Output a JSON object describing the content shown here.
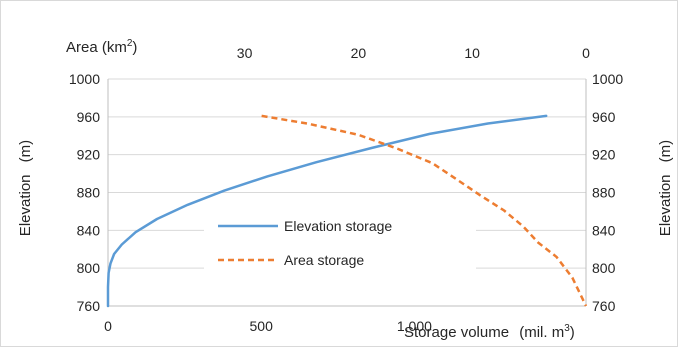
{
  "chart_data": {
    "type": "line",
    "title": "",
    "left_axis": {
      "label": "Elevation",
      "unit": "(m)",
      "ticks": [
        760,
        800,
        840,
        880,
        920,
        960,
        1000
      ],
      "range": [
        760,
        1000
      ]
    },
    "right_axis": {
      "label": "Elevation",
      "unit": "(m)",
      "ticks": [
        760,
        800,
        840,
        880,
        920,
        960,
        1000
      ],
      "range": [
        760,
        1000
      ]
    },
    "bottom_axis": {
      "label": "Storage volume",
      "unit_prefix": "(mil. m",
      "unit_sup": "3",
      "unit_suffix": ")",
      "ticks": [
        0,
        500,
        1000
      ],
      "tick_labels": [
        "0",
        "500",
        "1,000"
      ],
      "range": [
        0,
        1560
      ]
    },
    "top_axis": {
      "label_prefix": "Area (km",
      "label_sup": "2",
      "label_suffix": ")",
      "ticks": [
        30,
        20,
        10,
        0
      ],
      "range": [
        0,
        42
      ],
      "reversed": true
    },
    "grid": "horizontal",
    "legend_position": "center",
    "series": [
      {
        "name": "Elevation storage",
        "axis": "bottom",
        "color": "#5b9bd5",
        "style": "solid",
        "points": [
          [
            0,
            760
          ],
          [
            0,
            780
          ],
          [
            2,
            795
          ],
          [
            8,
            805
          ],
          [
            20,
            815
          ],
          [
            45,
            825
          ],
          [
            90,
            838
          ],
          [
            160,
            852
          ],
          [
            260,
            867
          ],
          [
            380,
            882
          ],
          [
            520,
            897
          ],
          [
            680,
            912
          ],
          [
            860,
            927
          ],
          [
            1050,
            942
          ],
          [
            1240,
            953
          ],
          [
            1430,
            961
          ]
        ]
      },
      {
        "name": "Area storage",
        "axis": "top",
        "color": "#ed7d31",
        "style": "dashed",
        "points": [
          [
            28.5,
            961
          ],
          [
            24.5,
            953
          ],
          [
            20,
            941
          ],
          [
            16.5,
            926
          ],
          [
            13.5,
            911
          ],
          [
            11.5,
            895
          ],
          [
            9.3,
            877
          ],
          [
            7.2,
            861
          ],
          [
            5.5,
            844
          ],
          [
            4.2,
            827
          ],
          [
            2.6,
            812
          ],
          [
            1.2,
            790
          ],
          [
            0,
            760
          ]
        ]
      }
    ]
  }
}
